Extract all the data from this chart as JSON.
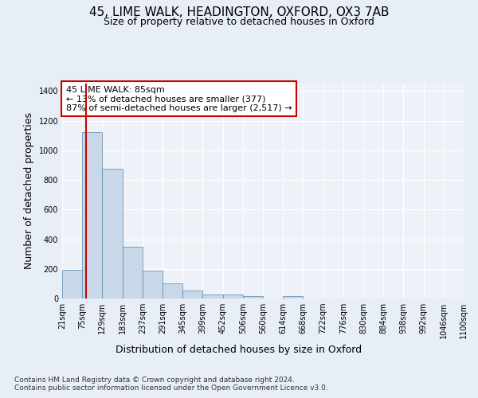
{
  "title_line1": "45, LIME WALK, HEADINGTON, OXFORD, OX3 7AB",
  "title_line2": "Size of property relative to detached houses in Oxford",
  "xlabel": "Distribution of detached houses by size in Oxford",
  "ylabel": "Number of detached properties",
  "footnote": "Contains HM Land Registry data © Crown copyright and database right 2024.\nContains public sector information licensed under the Open Government Licence v3.0.",
  "bin_labels": [
    "21sqm",
    "75sqm",
    "129sqm",
    "183sqm",
    "237sqm",
    "291sqm",
    "345sqm",
    "399sqm",
    "452sqm",
    "506sqm",
    "560sqm",
    "614sqm",
    "668sqm",
    "722sqm",
    "776sqm",
    "830sqm",
    "884sqm",
    "938sqm",
    "992sqm",
    "1046sqm",
    "1100sqm"
  ],
  "bar_values": [
    195,
    1120,
    875,
    350,
    190,
    100,
    52,
    25,
    25,
    18,
    0,
    15,
    0,
    0,
    0,
    0,
    0,
    0,
    0,
    0
  ],
  "bar_color": "#c8d8e8",
  "bar_edge_color": "#5588aa",
  "annotation_text": "45 LIME WALK: 85sqm\n← 13% of detached houses are smaller (377)\n87% of semi-detached houses are larger (2,517) →",
  "annotation_box_color": "#ffffff",
  "annotation_box_edge_color": "#cc0000",
  "red_line_color": "#cc0000",
  "ylim": [
    0,
    1450
  ],
  "yticks": [
    0,
    200,
    400,
    600,
    800,
    1000,
    1200,
    1400
  ],
  "bg_color": "#e8eef5",
  "plot_bg_color": "#eef2f8",
  "grid_color": "#ffffff",
  "title_fontsize": 11,
  "subtitle_fontsize": 9,
  "axis_label_fontsize": 9,
  "tick_fontsize": 7,
  "annotation_fontsize": 8,
  "footnote_fontsize": 6.5
}
